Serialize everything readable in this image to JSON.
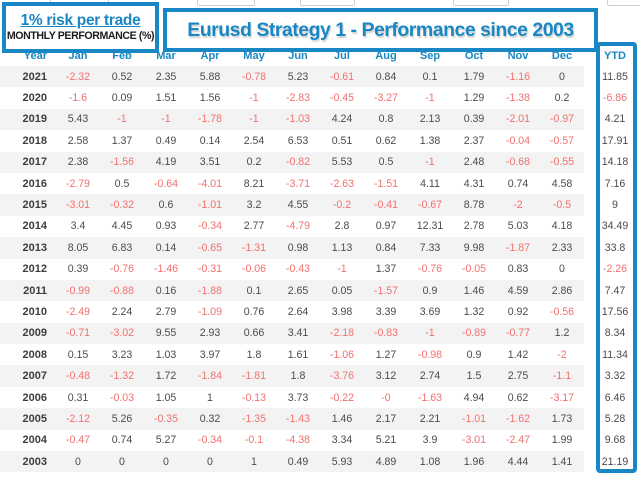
{
  "annotations": {
    "risk_label": "1% risk per trade",
    "subtitle": "MONTHLY PERFORMANCE (%)",
    "title": "Eurusd Strategy 1 - Performance since 2003"
  },
  "colors": {
    "accent_blue": "#1987c3",
    "negative_red": "#f1706e",
    "positive_dark": "#4b4b4d",
    "row_stripe": "#f3f3f3"
  },
  "chart_data": {
    "type": "table",
    "title": "Eurusd Strategy 1 - Performance since 2003",
    "units": "percent",
    "columns": [
      "Year",
      "Jan",
      "Feb",
      "Mar",
      "Apr",
      "May",
      "Jun",
      "Jul",
      "Aug",
      "Sep",
      "Oct",
      "Nov",
      "Dec",
      "YTD"
    ],
    "rows": [
      [
        "2021",
        "-2.32",
        "0.52",
        "2.35",
        "5.88",
        "-0.78",
        "5.23",
        "-0.61",
        "0.84",
        "0.1",
        "1.79",
        "-1.16",
        "0",
        "11.85"
      ],
      [
        "2020",
        "-1.6",
        "0.09",
        "1.51",
        "1.56",
        "-1",
        "-2.83",
        "-0.45",
        "-3.27",
        "-1",
        "1.29",
        "-1.38",
        "0.2",
        "-6.86"
      ],
      [
        "2019",
        "5.43",
        "-1",
        "-1",
        "-1.78",
        "-1",
        "-1.03",
        "4.24",
        "0.8",
        "2.13",
        "0.39",
        "-2.01",
        "-0.97",
        "4.21"
      ],
      [
        "2018",
        "2.58",
        "1.37",
        "0.49",
        "0.14",
        "2.54",
        "6.53",
        "0.51",
        "0.62",
        "1.38",
        "2.37",
        "-0.04",
        "-0.57",
        "17.91"
      ],
      [
        "2017",
        "2.38",
        "-1.56",
        "4.19",
        "3.51",
        "0.2",
        "-0.82",
        "5.53",
        "0.5",
        "-1",
        "2.48",
        "-0.68",
        "-0.55",
        "14.18"
      ],
      [
        "2016",
        "-2.79",
        "0.5",
        "-0.64",
        "-4.01",
        "8.21",
        "-3.71",
        "-2.63",
        "-1.51",
        "4.11",
        "4.31",
        "0.74",
        "4.58",
        "7.16"
      ],
      [
        "2015",
        "-3.01",
        "-0.32",
        "0.6",
        "-1.01",
        "3.2",
        "4.55",
        "-0.2",
        "-0.41",
        "-0.67",
        "8.78",
        "-2",
        "-0.5",
        "9"
      ],
      [
        "2014",
        "3.4",
        "4.45",
        "0.93",
        "-0.34",
        "2.77",
        "-4.79",
        "2.8",
        "0.97",
        "12.31",
        "2.78",
        "5.03",
        "4.18",
        "34.49"
      ],
      [
        "2013",
        "8.05",
        "6.83",
        "0.14",
        "-0.65",
        "-1.31",
        "0.98",
        "1.13",
        "0.84",
        "7.33",
        "9.98",
        "-1.87",
        "2.33",
        "33.8"
      ],
      [
        "2012",
        "0.39",
        "-0.76",
        "-1.46",
        "-0.31",
        "-0.06",
        "-0.43",
        "-1",
        "1.37",
        "-0.76",
        "-0.05",
        "0.83",
        "0",
        "-2.26"
      ],
      [
        "2011",
        "-0.99",
        "-0.88",
        "0.16",
        "-1.88",
        "0.1",
        "2.65",
        "0.05",
        "-1.57",
        "0.9",
        "1.46",
        "4.59",
        "2.86",
        "7.47"
      ],
      [
        "2010",
        "-2.49",
        "2.24",
        "2.79",
        "-1.09",
        "0.76",
        "2.64",
        "3.98",
        "3.39",
        "3.69",
        "1.32",
        "0.92",
        "-0.56",
        "17.56"
      ],
      [
        "2009",
        "-0.71",
        "-3.02",
        "9.55",
        "2.93",
        "0.66",
        "3.41",
        "-2.18",
        "-0.83",
        "-1",
        "-0.89",
        "-0.77",
        "1.2",
        "8.34"
      ],
      [
        "2008",
        "0.15",
        "3.23",
        "1.03",
        "3.97",
        "1.8",
        "1.61",
        "-1.06",
        "1.27",
        "-0.98",
        "0.9",
        "1.42",
        "-2",
        "11.34"
      ],
      [
        "2007",
        "-0.48",
        "-1.32",
        "1.72",
        "-1.84",
        "-1.81",
        "1.8",
        "-3.76",
        "3.12",
        "2.74",
        "1.5",
        "2.75",
        "-1.1",
        "3.32"
      ],
      [
        "2006",
        "0.31",
        "-0.03",
        "1.05",
        "1",
        "-0.13",
        "3.73",
        "-0.22",
        "-0",
        "-1.63",
        "4.94",
        "0.62",
        "-3.17",
        "6.46"
      ],
      [
        "2005",
        "-2.12",
        "5.26",
        "-0.35",
        "0.32",
        "-1.35",
        "-1.43",
        "1.46",
        "2.17",
        "2.21",
        "-1.01",
        "-1.62",
        "1.73",
        "5.28"
      ],
      [
        "2004",
        "-0.47",
        "0.74",
        "5.27",
        "-0.34",
        "-0.1",
        "-4.38",
        "3.34",
        "5.21",
        "3.9",
        "-3.01",
        "-2.47",
        "1.99",
        "9.68"
      ],
      [
        "2003",
        "0",
        "0",
        "0",
        "0",
        "1",
        "0.49",
        "5.93",
        "4.89",
        "1.08",
        "1.96",
        "4.44",
        "1.41",
        "21.19"
      ]
    ]
  }
}
